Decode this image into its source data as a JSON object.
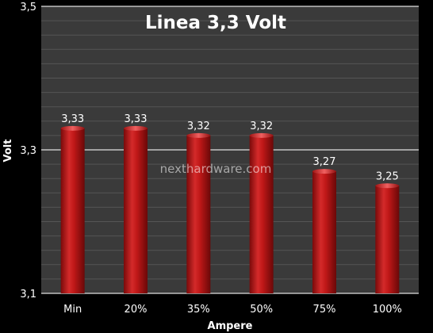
{
  "chart_data": {
    "type": "bar",
    "title": "Linea 3,3 Volt",
    "xlabel": "Ampere",
    "ylabel": "Volt",
    "categories": [
      "Min",
      "20%",
      "35%",
      "50%",
      "75%",
      "100%"
    ],
    "values": [
      3.33,
      3.33,
      3.32,
      3.32,
      3.27,
      3.25
    ],
    "value_labels": [
      "3,33",
      "3,33",
      "3,32",
      "3,32",
      "3,27",
      "3,25"
    ],
    "ylim": [
      3.1,
      3.5
    ],
    "yticks": [
      3.1,
      3.3,
      3.5
    ],
    "ytick_labels": [
      "3,1",
      "3,3",
      "3,5"
    ],
    "grid": true,
    "bar_color": "#c01818",
    "plot_background": "#3a3a3a",
    "watermark": "nexthardware.com"
  }
}
